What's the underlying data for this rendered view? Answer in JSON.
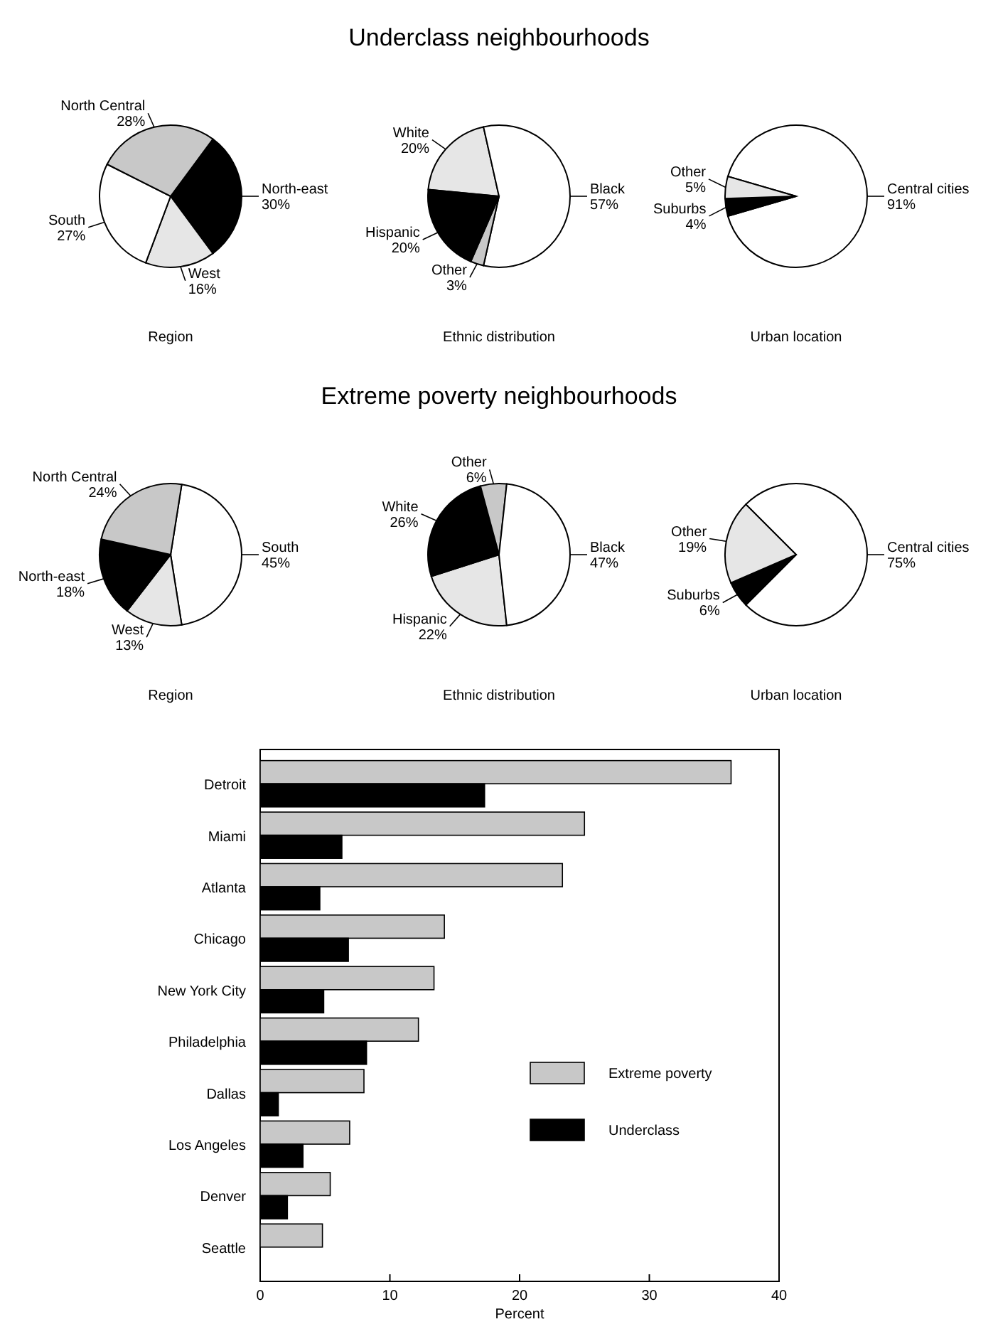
{
  "chart_data": [
    {
      "type": "pie",
      "xlabel": "Region",
      "categories": [
        "North-east",
        "West",
        "South",
        "North Central"
      ],
      "values": [
        30,
        16,
        27,
        28
      ],
      "value_labels": [
        "30%",
        "16%",
        "27%",
        "28%"
      ],
      "colors": [
        "#000000",
        "#e6e6e6",
        "#ffffff",
        "#c8c8c8"
      ]
    },
    {
      "type": "pie",
      "title": "Underclass neighbourhoods",
      "xlabel": "Ethnic distribution",
      "categories": [
        "White",
        "Black",
        "Other",
        "Hispanic"
      ],
      "values": [
        20,
        57,
        3,
        20
      ],
      "value_labels": [
        "20%",
        "57%",
        "3%",
        "20%"
      ],
      "colors": [
        "#e6e6e6",
        "#ffffff",
        "#c8c8c8",
        "#000000"
      ]
    },
    {
      "type": "pie",
      "xlabel": "Urban location",
      "categories": [
        "Central cities",
        "Suburbs",
        "Other"
      ],
      "values": [
        91,
        4,
        5
      ],
      "value_labels": [
        "91%",
        "4%",
        "5%"
      ],
      "colors": [
        "#ffffff",
        "#000000",
        "#e6e6e6"
      ]
    },
    {
      "type": "pie",
      "xlabel": "Region",
      "categories": [
        "South",
        "West",
        "North-east",
        "North Central"
      ],
      "values": [
        45,
        13,
        18,
        24
      ],
      "value_labels": [
        "45%",
        "13%",
        "18%",
        "24%"
      ],
      "colors": [
        "#ffffff",
        "#e6e6e6",
        "#000000",
        "#c8c8c8"
      ]
    },
    {
      "type": "pie",
      "title": "Extreme poverty neighbourhoods",
      "xlabel": "Ethnic distribution",
      "categories": [
        "Hispanic",
        "White",
        "Other",
        "Black"
      ],
      "values": [
        22,
        26,
        6,
        47
      ],
      "value_labels": [
        "22%",
        "26%",
        "6%",
        "47%"
      ],
      "colors": [
        "#e6e6e6",
        "#000000",
        "#c8c8c8",
        "#ffffff"
      ]
    },
    {
      "type": "pie",
      "xlabel": "Urban location",
      "categories": [
        "Central cities",
        "Suburbs",
        "Other"
      ],
      "values": [
        75,
        6,
        19
      ],
      "value_labels": [
        "75%",
        "6%",
        "19%"
      ],
      "colors": [
        "#ffffff",
        "#000000",
        "#e6e6e6"
      ]
    },
    {
      "type": "bar",
      "orientation": "horizontal",
      "xlabel": "Percent",
      "categories": [
        "Detroit",
        "Miami",
        "Atlanta",
        "Chicago",
        "New York City",
        "Philadelphia",
        "Dallas",
        "Los Angeles",
        "Denver",
        "Seattle"
      ],
      "series": [
        {
          "name": "Extreme poverty",
          "color": "#c8c8c8",
          "values": [
            36.3,
            25.0,
            23.3,
            14.2,
            13.4,
            12.2,
            8.0,
            6.9,
            5.4,
            4.8
          ]
        },
        {
          "name": "Underclass",
          "color": "#000000",
          "values": [
            17.3,
            6.3,
            4.6,
            6.8,
            4.9,
            8.2,
            1.4,
            3.3,
            2.1,
            null
          ]
        }
      ],
      "xlim": [
        0,
        40
      ],
      "xticks": [
        0,
        10,
        20,
        30,
        40
      ],
      "grid": false,
      "legend": "right"
    }
  ]
}
